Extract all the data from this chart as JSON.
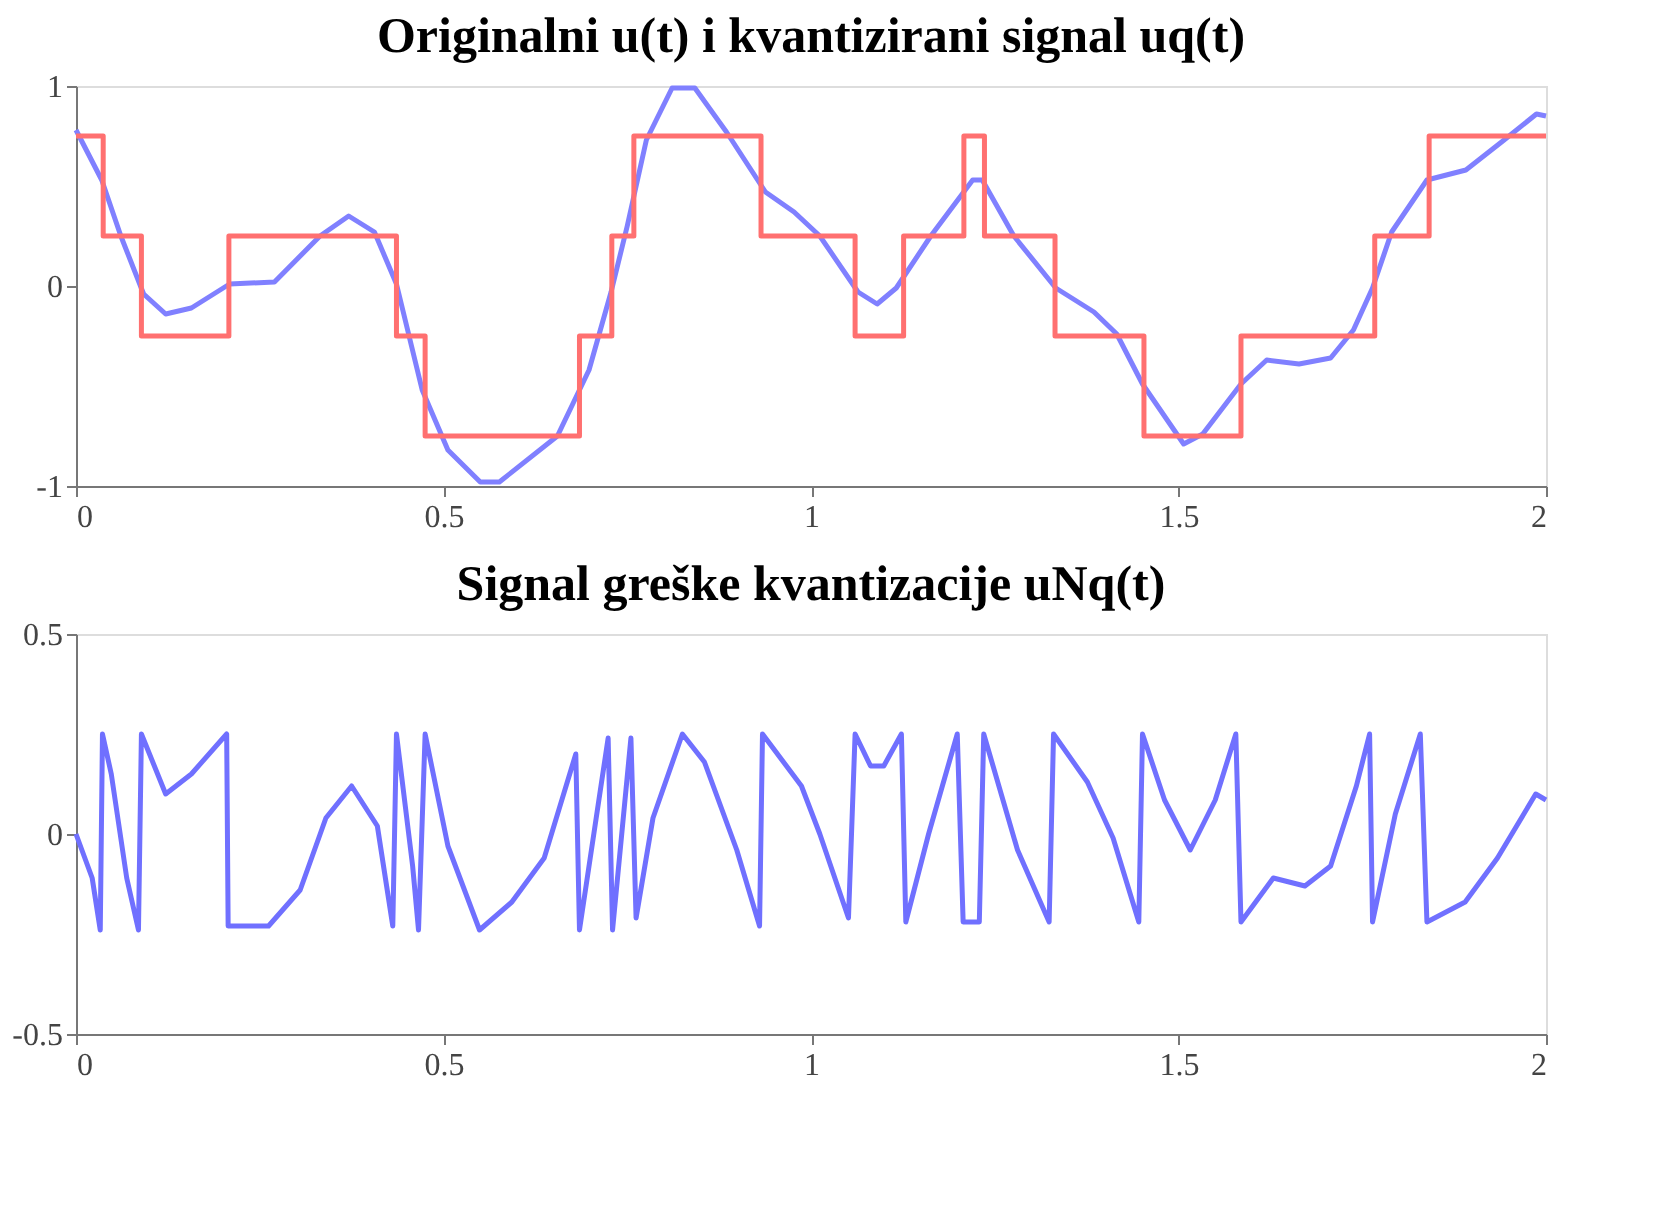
{
  "chart_data": [
    {
      "type": "line",
      "title": "Originalni u(t) i kvantizirani signal uq(t)",
      "xlim": [
        0,
        2
      ],
      "xticks": [
        0,
        0.5,
        1,
        1.5,
        2
      ],
      "ylim": [
        -1,
        1
      ],
      "yticks": [
        -1,
        0,
        1
      ],
      "grid": false,
      "series": [
        {
          "color": "#8080ff",
          "x": [
            0,
            0.035,
            0.061,
            0.092,
            0.122,
            0.157,
            0.209,
            0.27,
            0.332,
            0.371,
            0.406,
            0.436,
            0.471,
            0.506,
            0.55,
            0.576,
            0.655,
            0.698,
            0.728,
            0.75,
            0.776,
            0.811,
            0.842,
            0.885,
            0.938,
            0.977,
            1.012,
            1.064,
            1.09,
            1.116,
            1.163,
            1.22,
            1.233,
            1.276,
            1.333,
            1.385,
            1.416,
            1.451,
            1.507,
            1.533,
            1.585,
            1.62,
            1.664,
            1.707,
            1.738,
            1.764,
            1.79,
            1.838,
            1.891,
            1.943,
            1.987,
            2.0
          ],
          "values": [
            0.78,
            0.53,
            0.25,
            -0.04,
            -0.14,
            -0.11,
            0.01,
            0.02,
            0.25,
            0.35,
            0.27,
            0.01,
            -0.52,
            -0.82,
            -0.98,
            -0.98,
            -0.75,
            -0.42,
            -0.03,
            0.3,
            0.73,
            0.99,
            0.99,
            0.77,
            0.47,
            0.37,
            0.25,
            -0.03,
            -0.09,
            -0.01,
            0.25,
            0.53,
            0.53,
            0.25,
            -0.01,
            -0.13,
            -0.24,
            -0.49,
            -0.79,
            -0.74,
            -0.49,
            -0.37,
            -0.39,
            -0.36,
            -0.22,
            -0.01,
            0.27,
            0.53,
            0.58,
            0.73,
            0.86,
            0.85
          ]
        },
        {
          "type": "step",
          "color": "#ff7070",
          "x": [
            0,
            0.037,
            0.089,
            0.208,
            0.436,
            0.475,
            0.685,
            0.729,
            0.759,
            0.932,
            1.06,
            1.126,
            1.208,
            1.236,
            1.332,
            1.453,
            1.585,
            1.767,
            1.841,
            2.0
          ],
          "values": [
            0.75,
            0.25,
            -0.25,
            0.25,
            -0.25,
            -0.75,
            -0.25,
            0.25,
            0.75,
            0.25,
            -0.25,
            0.25,
            0.75,
            0.25,
            -0.25,
            -0.75,
            -0.25,
            0.25,
            0.75,
            0.75
          ]
        }
      ]
    },
    {
      "type": "line",
      "title": "Signal greške kvantizacije uNq(t)",
      "xlim": [
        0,
        2
      ],
      "xticks": [
        0,
        0.5,
        1,
        1.5,
        2
      ],
      "ylim": [
        -0.5,
        0.5
      ],
      "yticks": [
        -0.5,
        0,
        0.5
      ],
      "grid": false,
      "series": [
        {
          "color": "#7070ff",
          "x": [
            0,
            0.022,
            0.033,
            0.036,
            0.048,
            0.069,
            0.085,
            0.089,
            0.122,
            0.157,
            0.205,
            0.207,
            0.262,
            0.305,
            0.34,
            0.375,
            0.41,
            0.431,
            0.436,
            0.458,
            0.466,
            0.475,
            0.506,
            0.549,
            0.593,
            0.637,
            0.68,
            0.685,
            0.724,
            0.73,
            0.755,
            0.762,
            0.785,
            0.825,
            0.855,
            0.899,
            0.93,
            0.934,
            0.987,
            1.012,
            1.051,
            1.06,
            1.081,
            1.099,
            1.123,
            1.129,
            1.16,
            1.199,
            1.207,
            1.229,
            1.235,
            1.281,
            1.324,
            1.33,
            1.376,
            1.411,
            1.446,
            1.451,
            1.481,
            1.516,
            1.55,
            1.578,
            1.585,
            1.629,
            1.672,
            1.707,
            1.742,
            1.76,
            1.764,
            1.795,
            1.829,
            1.838,
            1.89,
            1.934,
            1.986,
            2.0
          ],
          "values": [
            0,
            -0.11,
            -0.24,
            0.25,
            0.15,
            -0.11,
            -0.24,
            0.25,
            0.1,
            0.15,
            0.25,
            -0.23,
            -0.23,
            -0.14,
            0.04,
            0.12,
            0.02,
            -0.23,
            0.25,
            -0.08,
            -0.24,
            0.25,
            -0.03,
            -0.24,
            -0.17,
            -0.06,
            0.2,
            -0.24,
            0.24,
            -0.24,
            0.24,
            -0.21,
            0.04,
            0.25,
            0.18,
            -0.04,
            -0.23,
            0.25,
            0.12,
            0,
            -0.21,
            0.25,
            0.17,
            0.17,
            0.25,
            -0.22,
            0,
            0.25,
            -0.22,
            -0.22,
            0.25,
            -0.04,
            -0.22,
            0.25,
            0.13,
            -0.01,
            -0.22,
            0.25,
            0.085,
            -0.04,
            0.085,
            0.25,
            -0.22,
            -0.11,
            -0.13,
            -0.08,
            0.12,
            0.25,
            -0.22,
            0.05,
            0.25,
            -0.22,
            -0.17,
            -0.06,
            0.1,
            0.085
          ]
        }
      ]
    }
  ]
}
